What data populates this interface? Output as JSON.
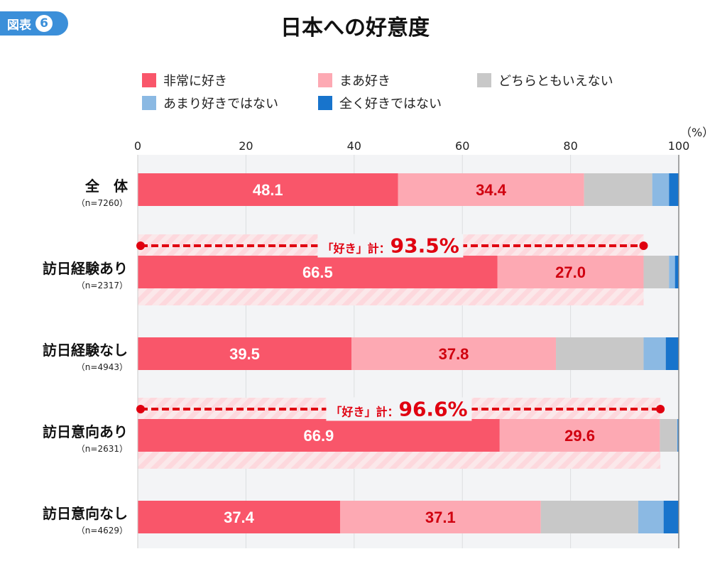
{
  "badge": {
    "label": "図表",
    "number": "6"
  },
  "chart_data": {
    "type": "bar",
    "orientation": "horizontal",
    "stacked": true,
    "title": "日本への好意度",
    "unit": "（%）",
    "xlim": [
      0,
      100
    ],
    "xticks": [
      "0",
      "20",
      "40",
      "60",
      "80",
      "100"
    ],
    "grid": true,
    "legend_position": "top",
    "categories": [
      {
        "label": "全　体",
        "n": "（n=7260）"
      },
      {
        "label": "訪日経験あり",
        "n": "（n=2317）"
      },
      {
        "label": "訪日経験なし",
        "n": "（n=4943）"
      },
      {
        "label": "訪日意向あり",
        "n": "（n=2631）"
      },
      {
        "label": "訪日意向なし",
        "n": "（n=4629）"
      }
    ],
    "series": [
      {
        "name": "非常に好き",
        "color": "#f9566a",
        "label_color": "#ffffff",
        "values": [
          48.1,
          66.5,
          39.5,
          66.9,
          37.4
        ],
        "labeled": true
      },
      {
        "name": "まあ好き",
        "color": "#fda9b3",
        "label_color": "#d0000f",
        "values": [
          34.4,
          27.0,
          37.8,
          29.6,
          37.1
        ],
        "labeled": true
      },
      {
        "name": "どちらともいえない",
        "color": "#c8c8c8",
        "values": [
          12.6,
          4.7,
          16.2,
          3.2,
          18.0
        ],
        "labeled": false
      },
      {
        "name": "あまり好きではない",
        "color": "#8bb9e3",
        "values": [
          3.1,
          1.1,
          4.1,
          0.1,
          4.7
        ],
        "labeled": false
      },
      {
        "name": "全く好きではない",
        "color": "#1874cc",
        "values": [
          1.8,
          0.7,
          2.4,
          0.2,
          2.8
        ],
        "labeled": false
      }
    ],
    "annotations": [
      {
        "row": 1,
        "prefix": "「好き」計：",
        "value": "93.5%",
        "total": 93.5
      },
      {
        "row": 3,
        "prefix": "「好き」計：",
        "value": "96.6%",
        "total": 96.6
      }
    ]
  }
}
